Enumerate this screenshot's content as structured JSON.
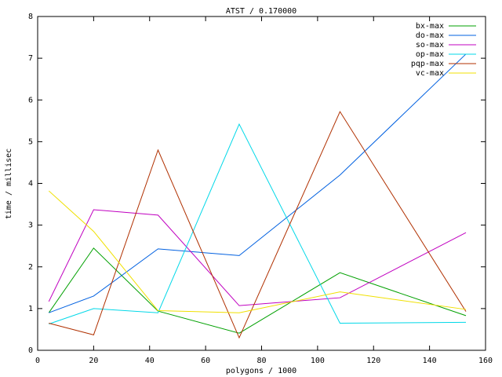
{
  "chart_data": {
    "type": "line",
    "title": "ATST / 0.170000",
    "x_label": "polygons / 1000",
    "y_label": "time / millisec",
    "x": [
      4,
      20,
      43,
      72,
      108,
      153
    ],
    "xlim": [
      0,
      160
    ],
    "xticks": [
      0,
      20,
      40,
      60,
      80,
      100,
      120,
      140,
      160
    ],
    "ylim": [
      0,
      8
    ],
    "yticks": [
      0,
      1,
      2,
      3,
      4,
      5,
      6,
      7,
      8
    ],
    "legend": "top-right",
    "series": [
      {
        "name": "bx-max",
        "color": "#00a000",
        "values": [
          0.9,
          2.45,
          0.94,
          0.41,
          1.86,
          0.83
        ]
      },
      {
        "name": "do-max",
        "color": "#0060e0",
        "values": [
          0.9,
          1.3,
          2.43,
          2.27,
          4.2,
          7.1
        ]
      },
      {
        "name": "so-max",
        "color": "#c000c0",
        "values": [
          1.17,
          3.37,
          3.24,
          1.07,
          1.26,
          2.82
        ]
      },
      {
        "name": "op-max",
        "color": "#00d8e8",
        "values": [
          0.63,
          1.0,
          0.9,
          5.42,
          0.65,
          0.67
        ]
      },
      {
        "name": "pqp-max",
        "color": "#b03000",
        "values": [
          0.65,
          0.37,
          4.8,
          0.3,
          5.72,
          0.93
        ]
      },
      {
        "name": "vc-max",
        "color": "#f0e000",
        "values": [
          3.82,
          2.85,
          0.95,
          0.9,
          1.4,
          0.98
        ]
      }
    ]
  }
}
